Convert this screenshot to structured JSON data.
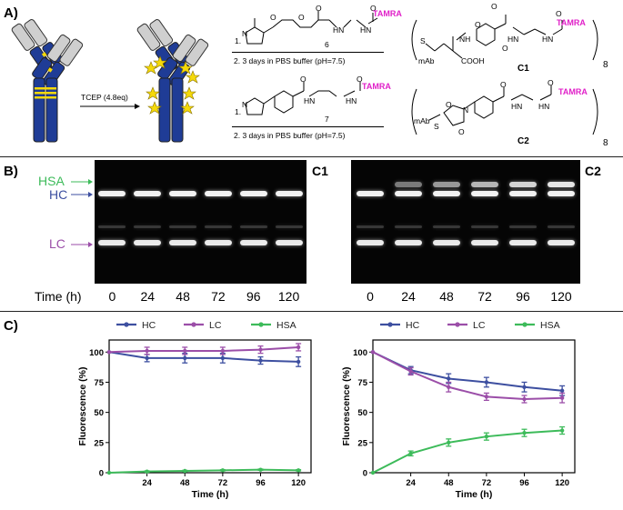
{
  "panel_a": {
    "label": "A)",
    "tcep": "TCEP (4.8eq)",
    "reagent_top_num": "6",
    "reagent_bottom_num": "7",
    "step1": "1.",
    "step2": "2. 3 days in PBS buffer (pH=7.5)",
    "tamra": "TAMRA",
    "mab": "mAb",
    "cooh": "COOH",
    "nh": "NH",
    "hn": "HN",
    "n": "N",
    "s": "S",
    "o": "O",
    "product_top": "C1",
    "product_bottom": "C2",
    "subscript": "8"
  },
  "panel_b": {
    "label": "B)",
    "gel_left_title": "C1",
    "gel_right_title": "C2",
    "band_hsa": "HSA",
    "band_hc": "HC",
    "band_lc": "LC",
    "time_label": "Time (h)",
    "lanes": [
      "0",
      "24",
      "48",
      "72",
      "96",
      "120"
    ]
  },
  "panel_c": {
    "label": "C)",
    "colors": {
      "HC": "#3d4fa0",
      "LC": "#9b4ea8",
      "HSA": "#3dbb5a"
    },
    "chart_data": [
      {
        "type": "line",
        "xlabel": "Time (h)",
        "ylabel": "Fluorescence (%)",
        "x": [
          0,
          24,
          48,
          72,
          96,
          120
        ],
        "xticks": [
          "24",
          "48",
          "72",
          "96",
          "120"
        ],
        "yticks": [
          "0",
          "25",
          "50",
          "75",
          "100"
        ],
        "xlim": [
          0,
          128
        ],
        "ylim": [
          0,
          110
        ],
        "legend": "top",
        "series": [
          {
            "name": "HC",
            "values": [
              100,
              95,
              95,
              95,
              93,
              92
            ],
            "err": [
              0,
              3,
              4,
              4,
              3,
              4
            ]
          },
          {
            "name": "LC",
            "values": [
              100,
              101,
              101,
              101,
              102,
              104
            ],
            "err": [
              0,
              3,
              3,
              3,
              3,
              3
            ]
          },
          {
            "name": "HSA",
            "values": [
              0,
              1,
              1.5,
              2,
              2.5,
              2
            ],
            "err": [
              0,
              0.5,
              0.5,
              0.5,
              0.5,
              0.5
            ]
          }
        ]
      },
      {
        "type": "line",
        "xlabel": "Time (h)",
        "ylabel": "Fluorescence (%)",
        "x": [
          0,
          24,
          48,
          72,
          96,
          120
        ],
        "xticks": [
          "24",
          "48",
          "72",
          "96",
          "120"
        ],
        "yticks": [
          "0",
          "25",
          "50",
          "75",
          "100"
        ],
        "xlim": [
          0,
          128
        ],
        "ylim": [
          0,
          110
        ],
        "legend": "top",
        "series": [
          {
            "name": "HC",
            "values": [
              100,
              85,
              78,
              75,
              71,
              68
            ],
            "err": [
              0,
              3,
              4,
              4,
              4,
              4
            ]
          },
          {
            "name": "LC",
            "values": [
              100,
              84,
              71,
              63,
              61,
              62
            ],
            "err": [
              0,
              3,
              4,
              3,
              3,
              4
            ]
          },
          {
            "name": "HSA",
            "values": [
              0,
              16,
              25,
              30,
              33,
              35
            ],
            "err": [
              0,
              2,
              3,
              3,
              3,
              3
            ]
          }
        ]
      }
    ]
  }
}
